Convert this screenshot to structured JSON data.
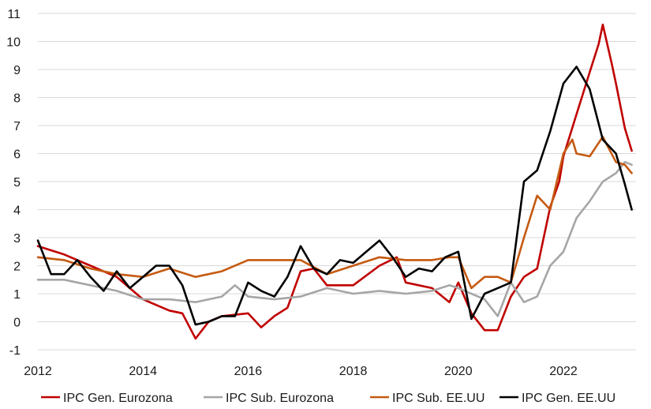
{
  "chart_data": {
    "type": "line",
    "title": "",
    "xlabel": "",
    "ylabel": "",
    "xlim": [
      2012,
      2023.3
    ],
    "ylim": [
      -1,
      11
    ],
    "grid": "horizontal",
    "legend_position": "bottom",
    "y_ticks": [
      "-1",
      "0",
      "1",
      "2",
      "3",
      "4",
      "5",
      "6",
      "7",
      "8",
      "9",
      "10",
      "11"
    ],
    "x_ticks": [
      "2012",
      "2014",
      "2016",
      "2018",
      "2020",
      "2022"
    ],
    "series": [
      {
        "name": "IPC Gen. Eurozona",
        "color": "#c00000",
        "x": [
          2012.0,
          2012.5,
          2013.0,
          2013.5,
          2014.0,
          2014.5,
          2014.75,
          2015.0,
          2015.25,
          2015.5,
          2016.0,
          2016.25,
          2016.5,
          2016.75,
          2017.0,
          2017.25,
          2017.5,
          2018.0,
          2018.5,
          2018.83,
          2019.0,
          2019.5,
          2019.83,
          2020.0,
          2020.25,
          2020.5,
          2020.75,
          2021.0,
          2021.25,
          2021.5,
          2021.75,
          2021.92,
          2022.0,
          2022.25,
          2022.5,
          2022.67,
          2022.75,
          2022.92,
          2023.0,
          2023.17,
          2023.3
        ],
        "y": [
          2.7,
          2.4,
          2.0,
          1.6,
          0.8,
          0.4,
          0.3,
          -0.6,
          0.0,
          0.2,
          0.3,
          -0.2,
          0.2,
          0.5,
          1.8,
          1.9,
          1.3,
          1.3,
          2.0,
          2.3,
          1.4,
          1.2,
          0.7,
          1.4,
          0.3,
          -0.3,
          -0.3,
          0.9,
          1.6,
          1.9,
          4.1,
          5.0,
          5.9,
          7.4,
          8.9,
          9.9,
          10.6,
          9.2,
          8.5,
          6.9,
          6.1
        ]
      },
      {
        "name": "IPC Sub. Eurozona",
        "color": "#a6a6a6",
        "x": [
          2012.0,
          2012.5,
          2013.0,
          2013.5,
          2014.0,
          2014.5,
          2015.0,
          2015.5,
          2015.75,
          2016.0,
          2016.5,
          2017.0,
          2017.5,
          2018.0,
          2018.5,
          2019.0,
          2019.5,
          2019.83,
          2020.0,
          2020.5,
          2020.75,
          2021.0,
          2021.25,
          2021.5,
          2021.75,
          2022.0,
          2022.25,
          2022.5,
          2022.75,
          2023.0,
          2023.17,
          2023.3
        ],
        "y": [
          1.5,
          1.5,
          1.3,
          1.1,
          0.8,
          0.8,
          0.7,
          0.9,
          1.3,
          0.9,
          0.8,
          0.9,
          1.2,
          1.0,
          1.1,
          1.0,
          1.1,
          1.3,
          1.2,
          0.8,
          0.2,
          1.4,
          0.7,
          0.9,
          2.0,
          2.5,
          3.7,
          4.3,
          5.0,
          5.3,
          5.7,
          5.6
        ]
      },
      {
        "name": "IPC Sub. EE.UU",
        "color": "#c55a11",
        "x": [
          2012.0,
          2012.5,
          2013.0,
          2013.5,
          2014.0,
          2014.5,
          2015.0,
          2015.5,
          2016.0,
          2016.5,
          2017.0,
          2017.5,
          2018.0,
          2018.5,
          2019.0,
          2019.5,
          2019.83,
          2020.0,
          2020.25,
          2020.5,
          2020.75,
          2021.0,
          2021.25,
          2021.5,
          2021.75,
          2022.0,
          2022.17,
          2022.25,
          2022.5,
          2022.75,
          2022.83,
          2023.0,
          2023.17,
          2023.3
        ],
        "y": [
          2.3,
          2.2,
          1.9,
          1.7,
          1.6,
          1.9,
          1.6,
          1.8,
          2.2,
          2.2,
          2.2,
          1.7,
          2.0,
          2.3,
          2.2,
          2.2,
          2.3,
          2.3,
          1.2,
          1.6,
          1.6,
          1.4,
          3.0,
          4.5,
          4.0,
          6.0,
          6.5,
          6.0,
          5.9,
          6.6,
          6.3,
          5.7,
          5.6,
          5.3
        ]
      },
      {
        "name": "IPC Gen. EE.UU",
        "color": "#000000",
        "x": [
          2012.0,
          2012.25,
          2012.5,
          2012.75,
          2013.0,
          2013.25,
          2013.5,
          2013.75,
          2014.0,
          2014.25,
          2014.5,
          2014.75,
          2015.0,
          2015.25,
          2015.5,
          2015.75,
          2016.0,
          2016.25,
          2016.5,
          2016.75,
          2017.0,
          2017.25,
          2017.5,
          2017.75,
          2018.0,
          2018.25,
          2018.5,
          2018.75,
          2019.0,
          2019.25,
          2019.5,
          2019.75,
          2020.0,
          2020.25,
          2020.5,
          2020.75,
          2021.0,
          2021.25,
          2021.5,
          2021.75,
          2022.0,
          2022.25,
          2022.5,
          2022.75,
          2023.0,
          2023.17,
          2023.3
        ],
        "y": [
          2.9,
          1.7,
          1.7,
          2.2,
          1.6,
          1.1,
          1.8,
          1.2,
          1.6,
          2.0,
          2.0,
          1.3,
          -0.1,
          0.0,
          0.2,
          0.2,
          1.4,
          1.1,
          0.9,
          1.6,
          2.7,
          1.9,
          1.7,
          2.2,
          2.1,
          2.5,
          2.9,
          2.3,
          1.6,
          1.9,
          1.8,
          2.3,
          2.5,
          0.1,
          1.0,
          1.2,
          1.4,
          5.0,
          5.4,
          6.8,
          8.5,
          9.1,
          8.3,
          6.5,
          6.0,
          4.9,
          4.0
        ]
      }
    ]
  }
}
